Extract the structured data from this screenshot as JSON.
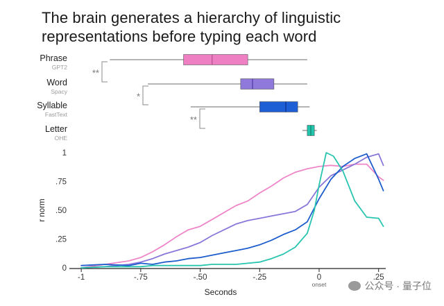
{
  "header": {
    "title_line1": "The brain generates a hierarchy of linguistic",
    "title_line2": "representations before typing each word"
  },
  "watermark": {
    "text": "公众号 · 量子位",
    "icon": "wechat-icon"
  },
  "chart_data": [
    {
      "type": "box",
      "title": "The brain generates a hierarchy of linguistic representations before typing each word",
      "x_range": [
        -1.05,
        0.28
      ],
      "rows": [
        {
          "label": "Phrase",
          "sublabel": "GPT2",
          "whisker_low": -0.88,
          "q1": -0.57,
          "median": -0.45,
          "q3": -0.3,
          "whisker_high": -0.05,
          "color": "#ef7fc3",
          "median_color": "#b0508e"
        },
        {
          "label": "Word",
          "sublabel": "Spacy",
          "whisker_low": -0.72,
          "q1": -0.33,
          "median": -0.28,
          "q3": -0.19,
          "whisker_high": -0.05,
          "color": "#8f79da",
          "median_color": "#4f3aa3"
        },
        {
          "label": "Syllable",
          "sublabel": "FastText",
          "whisker_low": -0.54,
          "q1": -0.25,
          "median": -0.14,
          "q3": -0.09,
          "whisker_high": -0.04,
          "color": "#1f5fd6",
          "median_color": "#0c2f86"
        },
        {
          "label": "Letter",
          "sublabel": "OHE",
          "whisker_low": -0.07,
          "q1": -0.05,
          "median": -0.035,
          "q3": -0.02,
          "whisker_high": -0.01,
          "color": "#22c4ac",
          "median_color": "#0c7f6c"
        }
      ],
      "significance": [
        {
          "label": "**",
          "between": [
            "Phrase",
            "Word"
          ]
        },
        {
          "label": "*",
          "between": [
            "Word",
            "Syllable"
          ]
        },
        {
          "label": "**",
          "between": [
            "Syllable",
            "Letter"
          ]
        }
      ]
    },
    {
      "type": "line",
      "xlabel": "Seconds",
      "ylabel": "r norm",
      "xlim": [
        -1.05,
        0.28
      ],
      "ylim": [
        0,
        1.02
      ],
      "x_ticks": [
        -1,
        -0.75,
        -0.5,
        -0.25,
        0,
        0.25
      ],
      "x_tick_labels": [
        "-1",
        "-.75",
        "-.50",
        "-.25",
        "0",
        ".25"
      ],
      "onset_label": "onset",
      "y_ticks": [
        0,
        0.25,
        0.5,
        0.75,
        1
      ],
      "y_tick_labels": [
        "0",
        ".25",
        ".50",
        ".75",
        "1"
      ],
      "series": [
        {
          "name": "Phrase",
          "color": "#ee86c8",
          "x": [
            -1.0,
            -0.9,
            -0.8,
            -0.75,
            -0.7,
            -0.65,
            -0.6,
            -0.55,
            -0.5,
            -0.45,
            -0.4,
            -0.35,
            -0.3,
            -0.25,
            -0.2,
            -0.15,
            -0.1,
            -0.05,
            0.0,
            0.05,
            0.1,
            0.15,
            0.2,
            0.25,
            0.27
          ],
          "y": [
            0.0,
            0.03,
            0.06,
            0.09,
            0.14,
            0.2,
            0.27,
            0.33,
            0.36,
            0.42,
            0.48,
            0.54,
            0.58,
            0.65,
            0.71,
            0.78,
            0.83,
            0.86,
            0.88,
            0.89,
            0.88,
            0.9,
            0.9,
            0.79,
            0.76
          ]
        },
        {
          "name": "Word",
          "color": "#8a76d8",
          "x": [
            -1.0,
            -0.9,
            -0.8,
            -0.75,
            -0.7,
            -0.65,
            -0.6,
            -0.55,
            -0.5,
            -0.45,
            -0.4,
            -0.35,
            -0.3,
            -0.25,
            -0.2,
            -0.15,
            -0.1,
            -0.05,
            0.0,
            0.05,
            0.1,
            0.15,
            0.2,
            0.25,
            0.27
          ],
          "y": [
            0.0,
            0.01,
            0.03,
            0.05,
            0.08,
            0.12,
            0.15,
            0.18,
            0.22,
            0.28,
            0.33,
            0.38,
            0.41,
            0.43,
            0.45,
            0.47,
            0.49,
            0.55,
            0.7,
            0.8,
            0.85,
            0.9,
            0.96,
            0.99,
            0.89
          ]
        },
        {
          "name": "Syllable",
          "color": "#1d5ccd",
          "x": [
            -1.0,
            -0.9,
            -0.8,
            -0.75,
            -0.7,
            -0.65,
            -0.6,
            -0.55,
            -0.5,
            -0.45,
            -0.4,
            -0.35,
            -0.3,
            -0.25,
            -0.2,
            -0.15,
            -0.1,
            -0.05,
            0.0,
            0.05,
            0.1,
            0.15,
            0.2,
            0.25,
            0.27
          ],
          "y": [
            0.02,
            0.03,
            0.02,
            0.04,
            0.03,
            0.05,
            0.06,
            0.08,
            0.09,
            0.11,
            0.13,
            0.15,
            0.17,
            0.2,
            0.24,
            0.29,
            0.33,
            0.4,
            0.6,
            0.77,
            0.88,
            0.95,
            0.99,
            0.77,
            0.67
          ]
        },
        {
          "name": "Letter",
          "color": "#27c5af",
          "x": [
            -1.0,
            -0.9,
            -0.8,
            -0.75,
            -0.7,
            -0.65,
            -0.6,
            -0.55,
            -0.5,
            -0.45,
            -0.4,
            -0.35,
            -0.3,
            -0.25,
            -0.2,
            -0.15,
            -0.1,
            -0.05,
            -0.02,
            0.0,
            0.03,
            0.06,
            0.1,
            0.15,
            0.2,
            0.25,
            0.27
          ],
          "y": [
            0.0,
            0.01,
            0.01,
            0.01,
            0.02,
            0.02,
            0.02,
            0.02,
            0.02,
            0.03,
            0.03,
            0.03,
            0.04,
            0.05,
            0.08,
            0.12,
            0.18,
            0.3,
            0.5,
            0.72,
            1.0,
            0.97,
            0.84,
            0.58,
            0.44,
            0.43,
            0.36
          ]
        }
      ]
    }
  ]
}
